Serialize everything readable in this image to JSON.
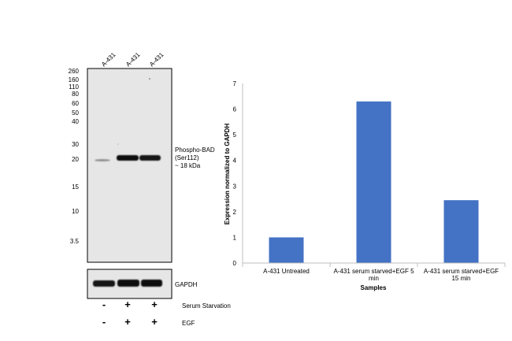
{
  "blot": {
    "lanes": [
      "A-431",
      "A-431",
      "A-431"
    ],
    "ladder_markers": [
      "260",
      "160",
      "110",
      "80",
      "60",
      "50",
      "40",
      "30",
      "20",
      "15",
      "10",
      "3.5"
    ],
    "band_label": [
      "Phospho-BAD",
      "(Ser112)",
      "~ 18 kDa"
    ],
    "loading_control_label": "GAPDH",
    "treatments": [
      {
        "label": "Serum Starvation",
        "signs": [
          "-",
          "+",
          "+"
        ]
      },
      {
        "label": "EGF",
        "signs": [
          "-",
          "+",
          "+"
        ]
      }
    ]
  },
  "chart_data": {
    "type": "bar",
    "categories": [
      [
        "A-431 Untreated"
      ],
      [
        "A-431 serum starved+EGF 5",
        "min"
      ],
      [
        "A-431 serum starved+EGF",
        "15 min"
      ]
    ],
    "values": [
      1.0,
      6.3,
      2.45
    ],
    "xlabel": "Samples",
    "ylabel": "Expression normalized to GAPDH",
    "ylim": [
      0,
      7
    ],
    "yticks": [
      "0",
      "1",
      "2",
      "3",
      "4",
      "5",
      "6",
      "7"
    ],
    "bar_color": "#4472c4",
    "grid": false,
    "legend": "none"
  }
}
